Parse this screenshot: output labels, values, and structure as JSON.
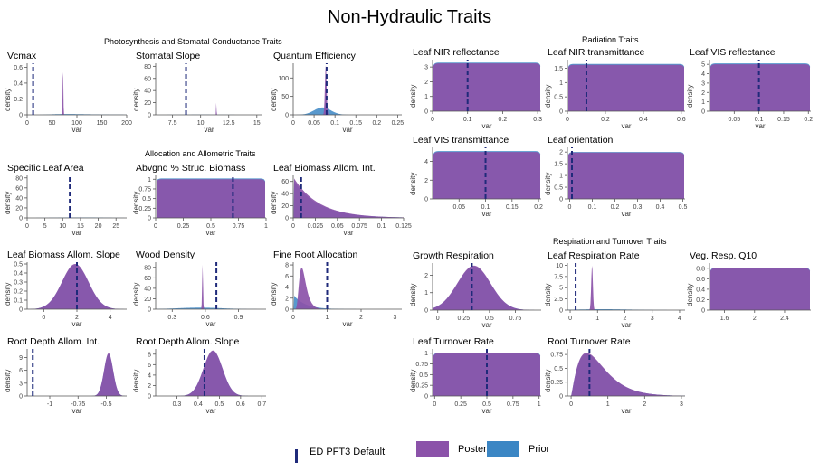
{
  "title": "Non-Hydraulic Traits",
  "sections": {
    "photosynthesis": "Photosynthesis and Stomatal Conductance Traits",
    "allocation": "Allocation and Allometric Traits",
    "radiation": "Radiation Traits",
    "respiration": "Respiration and Turnover Traits"
  },
  "colors": {
    "posterior": "#8B52A9",
    "prior": "#3B86C4",
    "default": "#1F2A7A",
    "axis": "#555555"
  },
  "legend": {
    "default_label": "ED PFT3 Default",
    "posterior_label": "Posterior",
    "prior_label": "Prior"
  },
  "chart_data": [
    {
      "id": "vcmax",
      "type": "area",
      "title": "Vcmax",
      "xlabel": "var",
      "ylabel": "density",
      "xlim": [
        0,
        200
      ],
      "ylim": [
        0,
        0.65
      ],
      "xticks": [
        0,
        50,
        100,
        150,
        200
      ],
      "yticks": [
        0,
        0.2,
        0.4,
        0.6
      ],
      "default": 12,
      "posterior": {
        "dist": "normal",
        "mean": 72,
        "sd": 0.7,
        "peak": 0.6
      },
      "prior": {
        "dist": "lognormal",
        "mean": 80,
        "sd": 40,
        "peak": 0.01
      }
    },
    {
      "id": "stomatal_slope",
      "type": "area",
      "title": "Stomatal Slope",
      "xlabel": "var",
      "ylabel": "density",
      "xlim": [
        6,
        15.5
      ],
      "ylim": [
        0,
        85
      ],
      "xticks": [
        7.5,
        10,
        12.5,
        15
      ],
      "yticks": [
        0,
        20,
        40,
        60,
        80
      ],
      "default": 8.7,
      "posterior": {
        "dist": "normal",
        "mean": 11.4,
        "sd": 0.01,
        "peak": 80
      },
      "prior": {
        "dist": "normal",
        "mean": 10,
        "sd": 2,
        "peak": 0.3
      }
    },
    {
      "id": "quantum_efficiency",
      "type": "area",
      "title": "Quantum Efficiency",
      "xlabel": "var",
      "ylabel": "density",
      "xlim": [
        0,
        0.26
      ],
      "ylim": [
        0,
        140
      ],
      "xticks": [
        0,
        0.05,
        0.1,
        0.15,
        0.2,
        0.25
      ],
      "yticks": [
        0,
        50,
        100
      ],
      "default": 0.08,
      "posterior": {
        "dist": "normal",
        "mean": 0.078,
        "sd": 0.002,
        "peak": 135
      },
      "prior": {
        "dist": "normal",
        "mean": 0.07,
        "sd": 0.02,
        "peak": 20
      }
    },
    {
      "id": "specific_leaf_area",
      "type": "area",
      "title": "Specific Leaf Area",
      "xlabel": "var",
      "ylabel": "density",
      "xlim": [
        0,
        28
      ],
      "ylim": [
        0,
        85
      ],
      "xticks": [
        0,
        5,
        10,
        15,
        20,
        25
      ],
      "yticks": [
        0,
        20,
        40,
        60,
        80
      ],
      "default": 12,
      "posterior": {
        "dist": "normal",
        "mean": 15,
        "sd": 0.02,
        "peak": 80
      },
      "prior": {
        "dist": "normal",
        "mean": 15,
        "sd": 6,
        "peak": 1
      }
    },
    {
      "id": "abvgnd_struc_biomass",
      "type": "area",
      "title": "Abvgnd % Struc. Biomass",
      "xlabel": "var",
      "ylabel": "density",
      "xlim": [
        0,
        1
      ],
      "ylim": [
        0,
        1.1
      ],
      "xticks": [
        0,
        0.25,
        0.5,
        0.75,
        1
      ],
      "yticks": [
        0,
        0.25,
        0.5,
        0.75,
        1
      ],
      "default": 0.7,
      "posterior": {
        "dist": "uniform",
        "level": 1
      },
      "prior": {
        "dist": "uniform",
        "level": 1.02
      }
    },
    {
      "id": "leaf_biomass_allom_int",
      "type": "area",
      "title": "Leaf Biomass Allom. Int.",
      "xlabel": "var",
      "ylabel": "density",
      "xlim": [
        0,
        0.125
      ],
      "ylim": [
        0,
        70
      ],
      "xticks": [
        0,
        0.025,
        0.05,
        0.075,
        0.1,
        0.125
      ],
      "yticks": [
        0,
        20,
        40,
        60
      ],
      "default": 0.009,
      "posterior": {
        "dist": "exp",
        "start": 0.001,
        "rate": 35,
        "peak": 65
      },
      "prior": {
        "dist": "exp",
        "start": 0.001,
        "rate": 35,
        "peak": 60
      }
    },
    {
      "id": "leaf_biomass_allom_slope",
      "type": "area",
      "title": "Leaf Biomass Allom. Slope",
      "xlabel": "var",
      "ylabel": "density",
      "xlim": [
        -1,
        5
      ],
      "ylim": [
        0,
        0.52
      ],
      "xticks": [
        0,
        2,
        4
      ],
      "yticks": [
        0,
        0.1,
        0.2,
        0.3,
        0.4,
        0.5
      ],
      "default": 2.0,
      "posterior": {
        "dist": "normal",
        "mean": 1.9,
        "sd": 0.8,
        "peak": 0.5
      },
      "prior": {
        "dist": "normal",
        "mean": 1.9,
        "sd": 0.8,
        "peak": 0.49
      }
    },
    {
      "id": "wood_density",
      "type": "area",
      "title": "Wood Density",
      "xlabel": "var",
      "ylabel": "density",
      "xlim": [
        0.15,
        1.15
      ],
      "ylim": [
        0,
        90
      ],
      "xticks": [
        0.3,
        0.6,
        0.9
      ],
      "yticks": [
        0,
        20,
        40,
        60,
        80
      ],
      "default": 0.7,
      "posterior": {
        "dist": "normal",
        "mean": 0.575,
        "sd": 0.004,
        "peak": 85
      },
      "prior": {
        "dist": "normal",
        "mean": 0.55,
        "sd": 0.2,
        "peak": 3
      }
    },
    {
      "id": "fine_root_allocation",
      "type": "area",
      "title": "Fine Root Allocation",
      "xlabel": "var",
      "ylabel": "density",
      "xlim": [
        0,
        3.2
      ],
      "ylim": [
        0,
        8.5
      ],
      "xticks": [
        0,
        1,
        2,
        3
      ],
      "yticks": [
        0,
        2,
        4,
        6,
        8
      ],
      "default": 1.0,
      "posterior": {
        "dist": "lognormal",
        "mean": 0.25,
        "sd": 0.1,
        "peak": 7.5
      },
      "prior": {
        "dist": "exp",
        "start": 0.02,
        "rate": 3,
        "peak": 2.5
      }
    },
    {
      "id": "root_depth_allom_int",
      "type": "area",
      "title": "Root Depth Allom. Int.",
      "xlabel": "var",
      "ylabel": "density",
      "xlim": [
        -1.2,
        -0.32
      ],
      "ylim": [
        0,
        11
      ],
      "xticks": [
        -1,
        -0.75,
        -0.5
      ],
      "yticks": [
        0,
        3,
        6,
        9
      ],
      "default": -1.15,
      "posterior": {
        "dist": "normal",
        "mean": -0.48,
        "sd": 0.04,
        "peak": 10
      },
      "prior": {
        "dist": "normal",
        "mean": -0.48,
        "sd": 0.04,
        "peak": 9.8
      }
    },
    {
      "id": "root_depth_allom_slope",
      "type": "area",
      "title": "Root Depth Allom. Slope",
      "xlabel": "var",
      "ylabel": "density",
      "xlim": [
        0.2,
        0.72
      ],
      "ylim": [
        0,
        9
      ],
      "xticks": [
        0.3,
        0.4,
        0.5,
        0.6,
        0.7
      ],
      "yticks": [
        0,
        2,
        4,
        6,
        8
      ],
      "default": 0.43,
      "posterior": {
        "dist": "normal",
        "mean": 0.47,
        "sd": 0.045,
        "peak": 8.7
      },
      "prior": {
        "dist": "normal",
        "mean": 0.47,
        "sd": 0.045,
        "peak": 8.6
      }
    },
    {
      "id": "leaf_nir_reflectance",
      "type": "area",
      "title": "Leaf NIR reflectance",
      "xlabel": "var",
      "ylabel": "density",
      "xlim": [
        0,
        0.31
      ],
      "ylim": [
        0,
        3.5
      ],
      "xticks": [
        0,
        0.1,
        0.2,
        0.3
      ],
      "yticks": [
        0,
        1,
        2,
        3
      ],
      "default": 0.1,
      "posterior": {
        "dist": "uniform",
        "level": 3.25
      },
      "prior": {
        "dist": "uniform",
        "level": 3.3
      }
    },
    {
      "id": "leaf_nir_transmittance",
      "type": "area",
      "title": "Leaf NIR transmittance",
      "xlabel": "var",
      "ylabel": "density",
      "xlim": [
        0,
        0.62
      ],
      "ylim": [
        0,
        1.8
      ],
      "xticks": [
        0,
        0.2,
        0.4,
        0.6
      ],
      "yticks": [
        0,
        0.5,
        1,
        1.5
      ],
      "default": 0.1,
      "posterior": {
        "dist": "uniform",
        "level": 1.62
      },
      "prior": {
        "dist": "uniform",
        "level": 1.65
      }
    },
    {
      "id": "leaf_vis_reflectance",
      "type": "area",
      "title": "Leaf VIS reflectance",
      "xlabel": "var",
      "ylabel": "density",
      "xlim": [
        0,
        0.205
      ],
      "ylim": [
        0,
        5.5
      ],
      "xticks": [
        0.05,
        0.1,
        0.15,
        0.2
      ],
      "yticks": [
        0,
        1,
        2,
        3,
        4,
        5
      ],
      "default": 0.1,
      "posterior": {
        "dist": "uniform",
        "level": 5.0
      },
      "prior": {
        "dist": "uniform",
        "level": 5.1
      }
    },
    {
      "id": "leaf_vis_transmittance",
      "type": "area",
      "title": "Leaf VIS transmittance",
      "xlabel": "var",
      "ylabel": "density",
      "xlim": [
        0,
        0.205
      ],
      "ylim": [
        0,
        5.5
      ],
      "xticks": [
        0.05,
        0.1,
        0.15,
        0.2
      ],
      "yticks": [
        0,
        2,
        4
      ],
      "default": 0.1,
      "posterior": {
        "dist": "uniform",
        "level": 5.0
      },
      "prior": {
        "dist": "uniform",
        "level": 5.1
      }
    },
    {
      "id": "leaf_orientation",
      "type": "area",
      "title": "Leaf orientation",
      "xlabel": "var",
      "ylabel": "density",
      "xlim": [
        -0.01,
        0.51
      ],
      "ylim": [
        0,
        2.2
      ],
      "xticks": [
        0,
        0.1,
        0.2,
        0.3,
        0.4,
        0.5
      ],
      "yticks": [
        0,
        0.5,
        1,
        1.5,
        2
      ],
      "default": 0.01,
      "posterior": {
        "dist": "uniform",
        "level": 1.98
      },
      "prior": {
        "dist": "uniform",
        "level": 2.0
      }
    },
    {
      "id": "growth_respiration",
      "type": "area",
      "title": "Growth Respiration",
      "xlabel": "var",
      "ylabel": "density",
      "xlim": [
        -0.05,
        1
      ],
      "ylim": [
        0,
        2.7
      ],
      "xticks": [
        0,
        0.25,
        0.5,
        0.75
      ],
      "yticks": [
        0,
        1,
        2
      ],
      "default": 0.33,
      "posterior": {
        "dist": "normal",
        "mean": 0.35,
        "sd": 0.16,
        "peak": 2.55
      },
      "prior": {
        "dist": "normal",
        "mean": 0.35,
        "sd": 0.16,
        "peak": 2.5
      }
    },
    {
      "id": "leaf_respiration_rate",
      "type": "area",
      "title": "Leaf Respiration Rate",
      "xlabel": "var",
      "ylabel": "density",
      "xlim": [
        -0.1,
        4.2
      ],
      "ylim": [
        0,
        10.5
      ],
      "xticks": [
        0,
        1,
        2,
        3,
        4
      ],
      "yticks": [
        0,
        2.5,
        5,
        7.5,
        10
      ],
      "default": 0.2,
      "posterior": {
        "dist": "normal",
        "mean": 0.8,
        "sd": 0.03,
        "peak": 10
      },
      "prior": {
        "dist": "normal",
        "mean": 1.2,
        "sd": 1.0,
        "peak": 0.2
      }
    },
    {
      "id": "veg_resp_q10",
      "type": "area",
      "title": "Veg. Resp. Q10",
      "xlabel": "",
      "ylabel": "density",
      "xlim": [
        1.4,
        2.75
      ],
      "ylim": [
        0,
        0.9
      ],
      "xticks": [
        1.6,
        2.0,
        2.4
      ],
      "yticks": [
        0,
        0.2,
        0.4,
        0.6,
        0.8
      ],
      "default": null,
      "posterior": {
        "dist": "uniform",
        "level": 0.8
      },
      "prior": {
        "dist": "uniform",
        "level": 0.81
      }
    },
    {
      "id": "leaf_turnover_rate",
      "type": "area",
      "title": "Leaf Turnover Rate",
      "xlabel": "var",
      "ylabel": "density",
      "xlim": [
        -0.02,
        1.02
      ],
      "ylim": [
        0,
        1.1
      ],
      "xticks": [
        0,
        0.25,
        0.5,
        0.75,
        1
      ],
      "yticks": [
        0,
        0.25,
        0.5,
        0.75,
        1
      ],
      "default": 0.5,
      "posterior": {
        "dist": "uniform",
        "level": 1.0
      },
      "prior": {
        "dist": "uniform",
        "level": 1.01
      }
    },
    {
      "id": "root_turnover_rate",
      "type": "area",
      "title": "Root Turnover Rate",
      "xlabel": "var",
      "ylabel": "density",
      "xlim": [
        -0.1,
        3.1
      ],
      "ylim": [
        0,
        0.85
      ],
      "xticks": [
        0,
        1,
        2,
        3
      ],
      "yticks": [
        0,
        0.25,
        0.5,
        0.75
      ],
      "default": 0.5,
      "posterior": {
        "dist": "gamma",
        "shape": 2.2,
        "scale": 0.35,
        "peak": 0.78
      },
      "prior": {
        "dist": "gamma",
        "shape": 2.2,
        "scale": 0.35,
        "peak": 0.76
      }
    }
  ]
}
